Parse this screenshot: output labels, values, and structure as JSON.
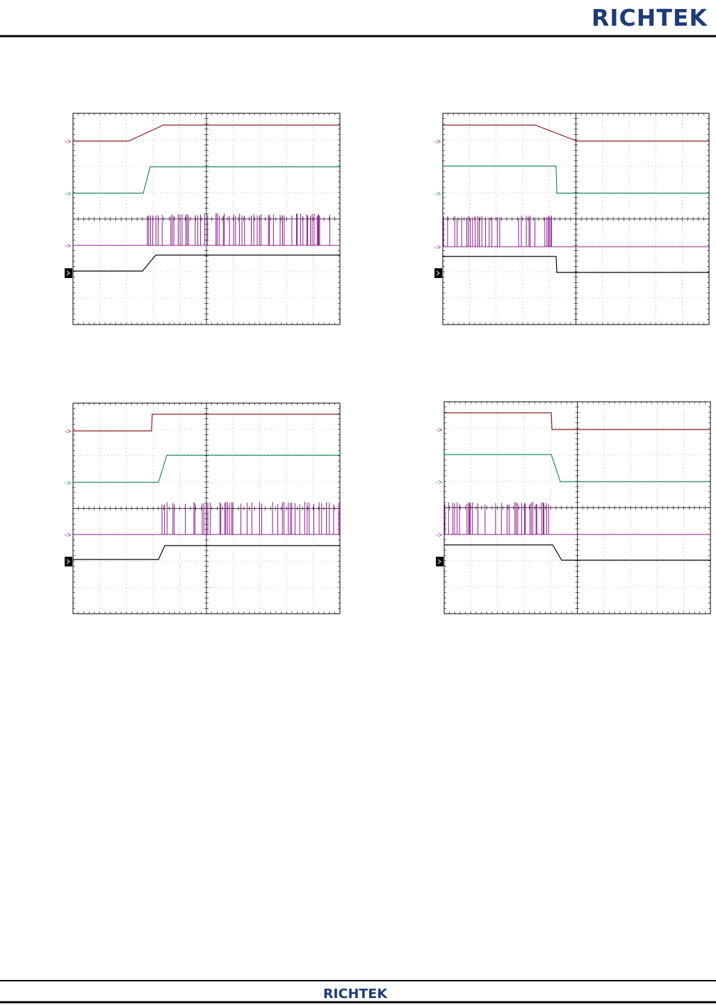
{
  "header": {
    "logo": "RICHTEK"
  },
  "footer": {
    "logo": "RICHTEK"
  }
}
